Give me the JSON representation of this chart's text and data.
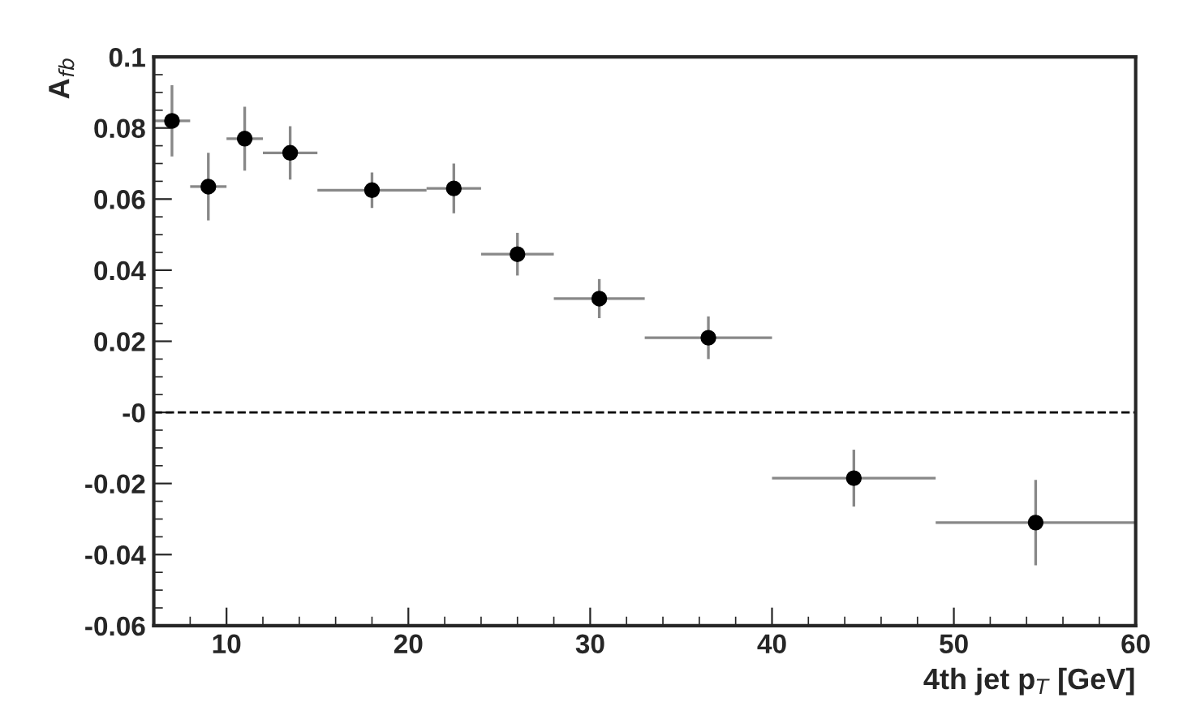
{
  "chart_data": {
    "type": "scatter",
    "xlabel": "4th jet p$_{T}$ [GeV]",
    "ylabel": "A$_{fb}$",
    "x": [
      7,
      9,
      11,
      13.5,
      18,
      22.5,
      26,
      30.5,
      36.5,
      44.5,
      54.5
    ],
    "series": [
      {
        "color": "#000000",
        "values": [
          0.082,
          0.0635,
          0.077,
          0.073,
          0.0625,
          0.063,
          0.0445,
          0.032,
          0.021,
          -0.0185,
          -0.031
        ],
        "errors": [
          0.01,
          0.0095,
          0.009,
          0.0075,
          0.005,
          0.007,
          0.006,
          0.0055,
          0.006,
          0.008,
          0.012
        ],
        "xerrors": [
          1,
          1,
          1,
          1.5,
          3,
          1.5,
          2,
          2.5,
          3.5,
          4.5,
          5.5
        ]
      }
    ],
    "marker": "circle",
    "xlim": [
      6,
      60
    ],
    "xticks": [
      10,
      20,
      30,
      40,
      50,
      60
    ],
    "ylim": [
      -0.06,
      0.1
    ],
    "yticks": [
      -0.06,
      -0.04,
      -0.02,
      {
        "value": 0,
        "label": "-0"
      },
      0.02,
      0.04,
      0.06,
      0.08,
      0.1
    ],
    "ref_lines": [
      {
        "axis": "y",
        "value": 0,
        "line_style": "dashed",
        "color": "#000000"
      }
    ],
    "grid": false,
    "legend": false
  }
}
